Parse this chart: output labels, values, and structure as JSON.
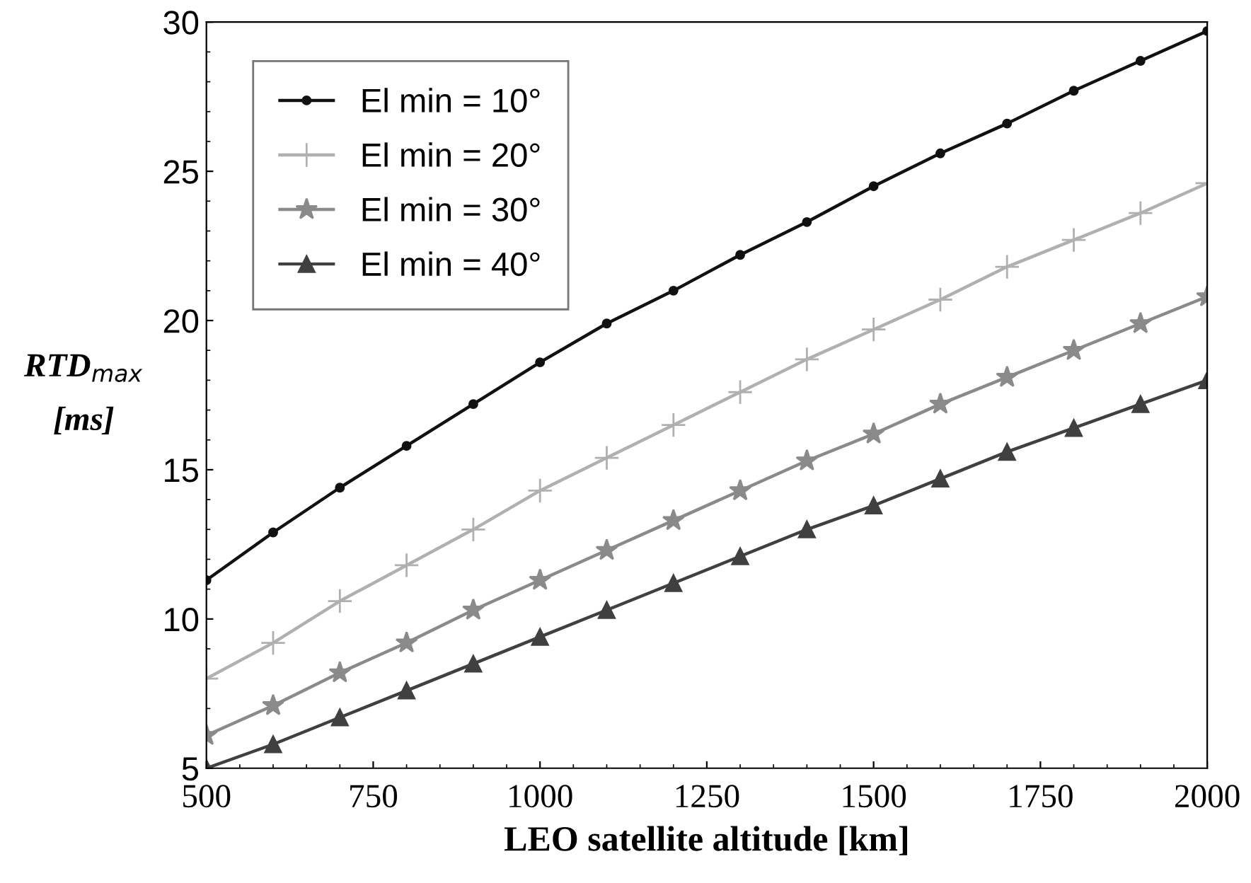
{
  "chart_data": {
    "type": "line",
    "xlabel": "LEO satellite altitude [km]",
    "ylabel": "RTD$_{max}$\n[ms]",
    "x": [
      500,
      600,
      700,
      800,
      900,
      1000,
      1100,
      1200,
      1300,
      1400,
      1500,
      1600,
      1700,
      1800,
      1900,
      2000
    ],
    "series": [
      {
        "name": "El min = 10°",
        "color": "#111111",
        "marker": "circle",
        "values": [
          11.3,
          12.9,
          14.4,
          15.8,
          17.2,
          18.6,
          19.9,
          21.0,
          22.2,
          23.3,
          24.5,
          25.6,
          26.6,
          27.7,
          28.7,
          29.7
        ]
      },
      {
        "name": "El min = 20°",
        "color": "#b0b0b0",
        "marker": "cross",
        "values": [
          8.0,
          9.2,
          10.6,
          11.8,
          13.0,
          14.3,
          15.4,
          16.5,
          17.6,
          18.7,
          19.7,
          20.7,
          21.8,
          22.7,
          23.6,
          24.6
        ]
      },
      {
        "name": "El min = 30°",
        "color": "#8a8a8a",
        "marker": "star",
        "values": [
          6.1,
          7.1,
          8.2,
          9.2,
          10.3,
          11.3,
          12.3,
          13.3,
          14.3,
          15.3,
          16.2,
          17.2,
          18.1,
          19.0,
          19.9,
          20.8
        ]
      },
      {
        "name": "El min = 40°",
        "color": "#404040",
        "marker": "triangle",
        "values": [
          5.0,
          5.8,
          6.7,
          7.6,
          8.5,
          9.4,
          10.3,
          11.2,
          12.1,
          13.0,
          13.8,
          14.7,
          15.6,
          16.4,
          17.2,
          18.0
        ]
      }
    ],
    "xlim": [
      500,
      2000
    ],
    "ylim": [
      5,
      30
    ],
    "xticks": [
      500,
      750,
      1000,
      1250,
      1500,
      1750,
      2000
    ],
    "yticks": [
      5,
      10,
      15,
      20,
      25,
      30
    ],
    "grid": false,
    "legend": "top left",
    "line_style": "solid"
  }
}
